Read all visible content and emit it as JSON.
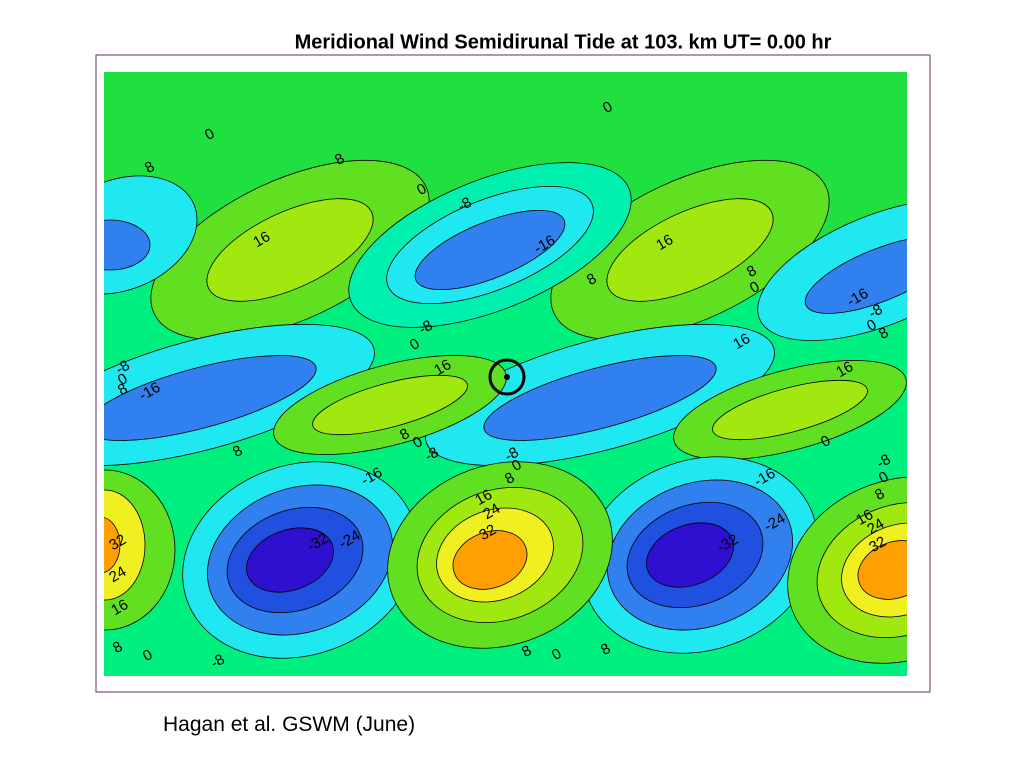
{
  "header": {
    "title": "Meridional Wind Semidirunal Tide at 103. km UT= 0.00 hr"
  },
  "map": {
    "contour_labels": [
      0,
      8,
      8,
      0,
      -8,
      -16,
      0,
      16,
      8,
      16,
      8,
      0,
      -16,
      -8,
      0,
      8,
      -8,
      0,
      16,
      16,
      16,
      -8,
      0,
      8,
      -16,
      8,
      0,
      -8,
      8,
      0,
      -8,
      0,
      8,
      -16,
      -16,
      -8,
      0,
      8,
      16,
      24,
      32,
      -24,
      -32,
      16,
      24,
      32,
      -24,
      -32,
      32,
      24,
      16,
      8,
      0,
      -8,
      8,
      0,
      8
    ]
  },
  "caption": "Hagan et al. GSWM (June)"
}
